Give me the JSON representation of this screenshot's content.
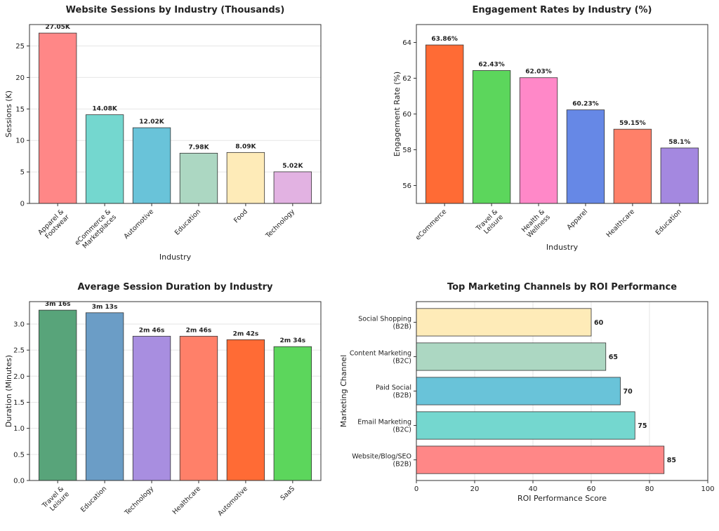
{
  "chart_data": [
    {
      "type": "bar",
      "title": "Website Sessions by Industry (Thousands)",
      "xlabel": "Industry",
      "ylabel": "Sessions (K)",
      "categories": [
        "Apparel &\nFootwear",
        "eCommerce &\nMarketplaces",
        "Automotive",
        "Education",
        "Food",
        "Technology"
      ],
      "values": [
        27.05,
        14.08,
        12.02,
        7.98,
        8.09,
        5.02
      ],
      "data_labels": [
        "27.05K",
        "14.08K",
        "12.02K",
        "7.98K",
        "8.09K",
        "5.02K"
      ],
      "colors": [
        "#FF8787",
        "#74D7CF",
        "#69C3D9",
        "#ACD7C2",
        "#FEEBB8",
        "#E2B2E2"
      ],
      "ylim": [
        0,
        28.4
      ],
      "yticks": [
        0,
        5,
        10,
        15,
        20,
        25
      ],
      "grid": "y"
    },
    {
      "type": "bar",
      "title": "Engagement Rates by Industry (%)",
      "xlabel": "Industry",
      "ylabel": "Engagement Rate (%)",
      "categories": [
        "eCommerce",
        "Travel &\nLeisure",
        "Health &\nWellness",
        "Apparel",
        "Healthcare",
        "Education"
      ],
      "values": [
        63.86,
        62.43,
        62.03,
        60.23,
        59.15,
        58.1
      ],
      "data_labels": [
        "63.86%",
        "62.43%",
        "62.03%",
        "60.23%",
        "59.15%",
        "58.1%"
      ],
      "colors": [
        "#FF6B35",
        "#5CD65C",
        "#FF88C8",
        "#6688E6",
        "#FF8069",
        "#A488E0"
      ],
      "ylim": [
        55,
        65
      ],
      "yticks": [
        56,
        58,
        60,
        62,
        64
      ],
      "grid": "none"
    },
    {
      "type": "bar",
      "title": "Average Session Duration by Industry",
      "xlabel": "Industry",
      "ylabel": "Duration (Minutes)",
      "categories": [
        "Travel &\nLeisure",
        "Education",
        "Technology",
        "Healthcare",
        "Automotive",
        "SaaS"
      ],
      "values": [
        3.267,
        3.217,
        2.767,
        2.767,
        2.7,
        2.567
      ],
      "data_labels": [
        "3m 16s",
        "3m 13s",
        "2m 46s",
        "2m 46s",
        "2m 42s",
        "2m 34s"
      ],
      "colors": [
        "#58A47A",
        "#6B9DC6",
        "#A88EE0",
        "#FF8069",
        "#FF6B35",
        "#5CD65C"
      ],
      "ylim": [
        0,
        3.43
      ],
      "yticks": [
        0.0,
        0.5,
        1.0,
        1.5,
        2.0,
        2.5,
        3.0
      ],
      "ytick_labels": [
        "0.0",
        "0.5",
        "1.0",
        "1.5",
        "2.0",
        "2.5",
        "3.0"
      ],
      "grid": "y"
    },
    {
      "type": "barh",
      "title": "Top Marketing Channels by ROI Performance",
      "xlabel": "ROI Performance Score",
      "ylabel": "Marketing Channel",
      "categories": [
        "Website/Blog/SEO\n(B2B)",
        "Email Marketing\n(B2C)",
        "Paid Social\n(B2B)",
        "Content Marketing\n(B2C)",
        "Social Shopping\n(B2B)"
      ],
      "values": [
        85,
        75,
        70,
        65,
        60
      ],
      "data_labels": [
        "85",
        "75",
        "70",
        "65",
        "60"
      ],
      "colors": [
        "#FF8787",
        "#74D7CF",
        "#69C3D9",
        "#ACD7C2",
        "#FEEBB8"
      ],
      "xlim": [
        0,
        100
      ],
      "xticks": [
        0,
        20,
        40,
        60,
        80,
        100
      ],
      "grid": "x"
    }
  ]
}
